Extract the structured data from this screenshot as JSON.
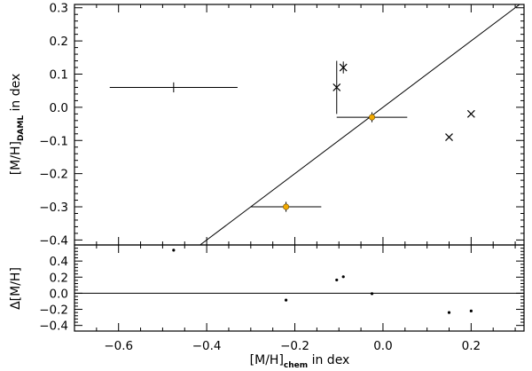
{
  "chart_data": [
    {
      "type": "scatter",
      "panel": "top",
      "xlim": [
        -0.7,
        0.32
      ],
      "ylim": [
        -0.415,
        0.31
      ],
      "x_ticks": [
        -0.6,
        -0.4,
        -0.2,
        0.0,
        0.2
      ],
      "x_tick_labels": [
        "−0.6",
        "−0.4",
        "−0.2",
        "0.0",
        "0.2"
      ],
      "y_ticks": [
        -0.4,
        -0.3,
        -0.2,
        -0.1,
        0.0,
        0.1,
        0.2,
        0.3
      ],
      "y_tick_labels": [
        "−0.4",
        "−0.3",
        "−0.2",
        "−0.1",
        "0.0",
        "0.1",
        "0.2",
        "0.3"
      ],
      "ylabel": {
        "main": "[M/H]",
        "sub": "DAML",
        "tail": " in dex"
      },
      "reference_line": "y = x",
      "points": [
        {
          "x": -0.475,
          "y": 0.06,
          "marker": "none",
          "xerr": 0.145,
          "yerr": 0.015
        },
        {
          "x": -0.22,
          "y": -0.3,
          "marker": "filled-orange",
          "xerr": 0.08,
          "yerr": 0.015
        },
        {
          "x": -0.025,
          "y": -0.03,
          "marker": "filled-orange",
          "xerr": 0.08,
          "yerr": 0.015
        },
        {
          "x": -0.105,
          "y": 0.06,
          "marker": "cross",
          "yerr": 0.08
        },
        {
          "x": -0.09,
          "y": 0.12,
          "marker": "cross",
          "yerr": 0.018
        },
        {
          "x": 0.15,
          "y": -0.09,
          "marker": "cross"
        },
        {
          "x": 0.2,
          "y": -0.02,
          "marker": "cross"
        }
      ]
    },
    {
      "type": "scatter",
      "panel": "bottom",
      "xlim": [
        -0.7,
        0.32
      ],
      "ylim": [
        -0.47,
        0.6
      ],
      "x_ticks": [
        -0.6,
        -0.4,
        -0.2,
        0.0,
        0.2
      ],
      "x_tick_labels": [
        "−0.6",
        "−0.4",
        "−0.2",
        "0.0",
        "0.2"
      ],
      "y_ticks": [
        -0.4,
        -0.2,
        0.0,
        0.2,
        0.4
      ],
      "y_tick_labels": [
        "−0.4",
        "−0.2",
        "0.0",
        "0.2",
        "0.4"
      ],
      "xlabel": {
        "main": "[M/H]",
        "sub": "chem",
        "tail": " in dex"
      },
      "ylabel": {
        "main": "Δ[M/H]"
      },
      "reference_line": "y = 0",
      "points": [
        {
          "x": -0.475,
          "y": 0.535
        },
        {
          "x": -0.22,
          "y": -0.085
        },
        {
          "x": -0.105,
          "y": 0.165
        },
        {
          "x": -0.09,
          "y": 0.205
        },
        {
          "x": -0.025,
          "y": -0.005
        },
        {
          "x": 0.15,
          "y": -0.24
        },
        {
          "x": 0.2,
          "y": -0.22
        }
      ]
    }
  ],
  "colors": {
    "axis": "#000000",
    "highlight_marker": "#f2a900"
  }
}
